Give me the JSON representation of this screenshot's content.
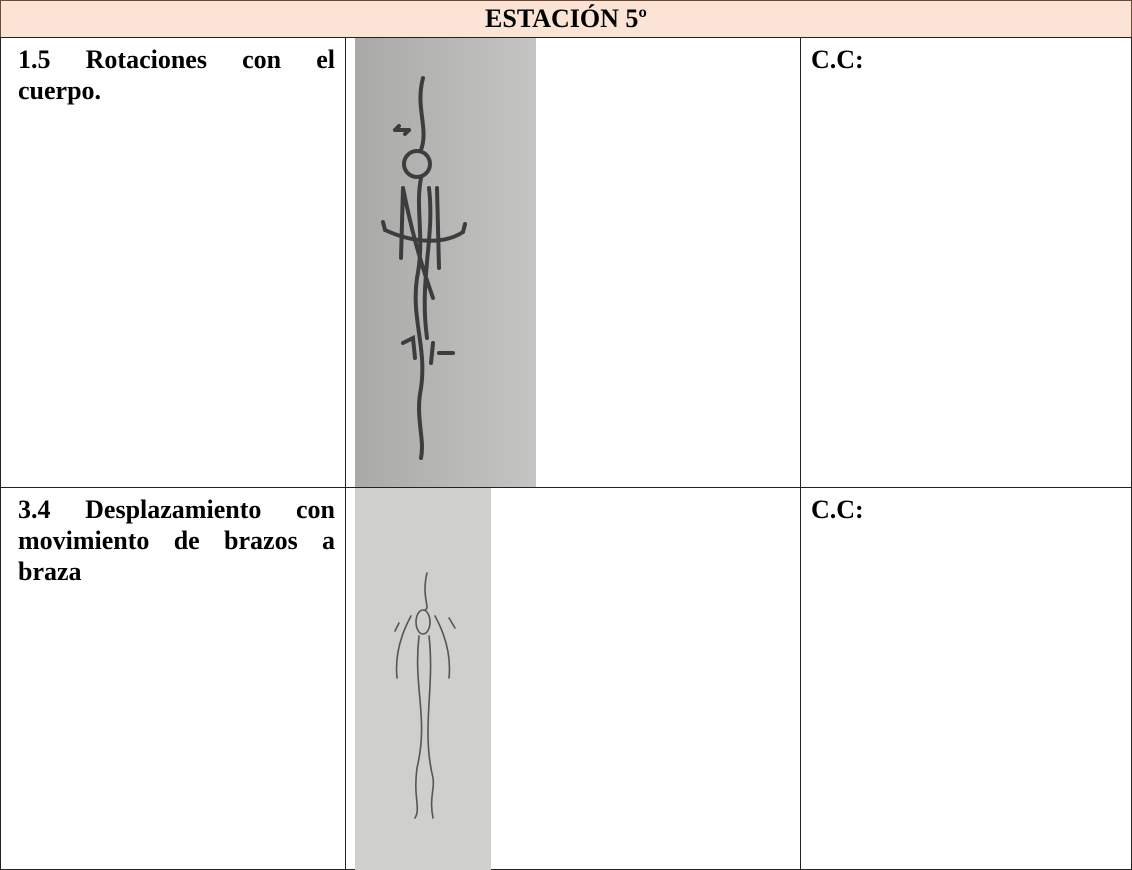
{
  "table": {
    "title": "ESTACIÓN 5º",
    "rows": [
      [
        "1.5 Rotaciones con el cuerpo.",
        "C.C:"
      ],
      [
        "3.4 Desplazamiento con movimiento de brazos a braza",
        "C.C:"
      ]
    ]
  }
}
